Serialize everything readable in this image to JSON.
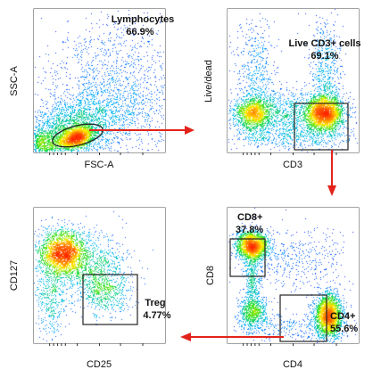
{
  "arrow_color": "#e3231b",
  "density_colors": [
    "#1a1aff",
    "#00b7ff",
    "#2be02b",
    "#ffee00",
    "#ff7b00",
    "#ff1a00"
  ],
  "chart_data": [
    {
      "type": "scatter",
      "panel": "top-left",
      "xlabel": "FSC-A",
      "ylabel": "SSC-A",
      "gate": {
        "shape": "ellipse",
        "name": "Lymphocytes",
        "percent": "66.9%",
        "label_lines": [
          "Lymphocytes",
          "66.9%"
        ]
      },
      "populations": [
        {
          "cx": 0.32,
          "cy": 0.1,
          "sx": 0.07,
          "sy": 0.035,
          "n": 1800,
          "rot": 0.25
        },
        {
          "cx": 0.28,
          "cy": 0.16,
          "sx": 0.22,
          "sy": 0.1,
          "n": 2200,
          "rot": 0.35
        },
        {
          "cx": 0.6,
          "cy": 0.38,
          "sx": 0.3,
          "sy": 0.28,
          "n": 1900,
          "rot": 0.55
        },
        {
          "cx": 0.08,
          "cy": 0.06,
          "sx": 0.05,
          "sy": 0.05,
          "n": 500,
          "rot": 0
        }
      ]
    },
    {
      "type": "scatter",
      "panel": "top-right",
      "xlabel": "CD3",
      "ylabel": "Live/dead",
      "gate": {
        "shape": "rect",
        "name": "Live CD3+ cells",
        "percent": "69.1%",
        "label_lines": [
          "Live CD3+ cells",
          "69.1%"
        ]
      },
      "populations": [
        {
          "cx": 0.74,
          "cy": 0.27,
          "sx": 0.07,
          "sy": 0.06,
          "n": 2600,
          "rot": 0
        },
        {
          "cx": 0.2,
          "cy": 0.27,
          "sx": 0.07,
          "sy": 0.06,
          "n": 1500,
          "rot": 0
        },
        {
          "cx": 0.47,
          "cy": 0.27,
          "sx": 0.2,
          "sy": 0.08,
          "n": 1100,
          "rot": 0
        },
        {
          "cx": 0.75,
          "cy": 0.55,
          "sx": 0.06,
          "sy": 0.2,
          "n": 600,
          "rot": 0
        },
        {
          "cx": 0.22,
          "cy": 0.55,
          "sx": 0.08,
          "sy": 0.18,
          "n": 450,
          "rot": 0
        },
        {
          "cx": 0.5,
          "cy": 0.1,
          "sx": 0.28,
          "sy": 0.04,
          "n": 500,
          "rot": 0
        }
      ]
    },
    {
      "type": "scatter",
      "panel": "bottom-right",
      "xlabel": "CD4",
      "ylabel": "CD8",
      "gates": [
        {
          "shape": "rect",
          "name": "CD8+",
          "percent": "37.8%",
          "label_lines": [
            "CD8+",
            "37.8%"
          ]
        },
        {
          "shape": "rect",
          "name": "CD4+",
          "percent": "55.6%",
          "label_lines": [
            "CD4+",
            "55.6%"
          ]
        }
      ],
      "populations": [
        {
          "cx": 0.19,
          "cy": 0.72,
          "sx": 0.06,
          "sy": 0.05,
          "n": 2200,
          "rot": 0
        },
        {
          "cx": 0.77,
          "cy": 0.2,
          "sx": 0.05,
          "sy": 0.08,
          "n": 2600,
          "rot": 0
        },
        {
          "cx": 0.19,
          "cy": 0.22,
          "sx": 0.05,
          "sy": 0.06,
          "n": 700,
          "rot": 0
        },
        {
          "cx": 0.19,
          "cy": 0.47,
          "sx": 0.03,
          "sy": 0.14,
          "n": 500,
          "rot": 0
        },
        {
          "cx": 0.5,
          "cy": 0.62,
          "sx": 0.22,
          "sy": 0.12,
          "n": 450,
          "rot": 0
        },
        {
          "cx": 0.48,
          "cy": 0.12,
          "sx": 0.22,
          "sy": 0.05,
          "n": 350,
          "rot": 0
        }
      ]
    },
    {
      "type": "scatter",
      "panel": "bottom-left",
      "xlabel": "CD25",
      "ylabel": "CD127",
      "gate": {
        "shape": "rect",
        "name": "Treg",
        "percent": "4.77%",
        "label_lines": [
          "Treg",
          "4.77%"
        ]
      },
      "populations": [
        {
          "cx": 0.22,
          "cy": 0.67,
          "sx": 0.09,
          "sy": 0.08,
          "n": 2400,
          "rot": 0
        },
        {
          "cx": 0.45,
          "cy": 0.55,
          "sx": 0.14,
          "sy": 0.12,
          "n": 900,
          "rot": 0
        },
        {
          "cx": 0.55,
          "cy": 0.38,
          "sx": 0.09,
          "sy": 0.1,
          "n": 500,
          "rot": 0
        },
        {
          "cx": 0.13,
          "cy": 0.35,
          "sx": 0.06,
          "sy": 0.16,
          "n": 500,
          "rot": 0
        }
      ]
    }
  ]
}
